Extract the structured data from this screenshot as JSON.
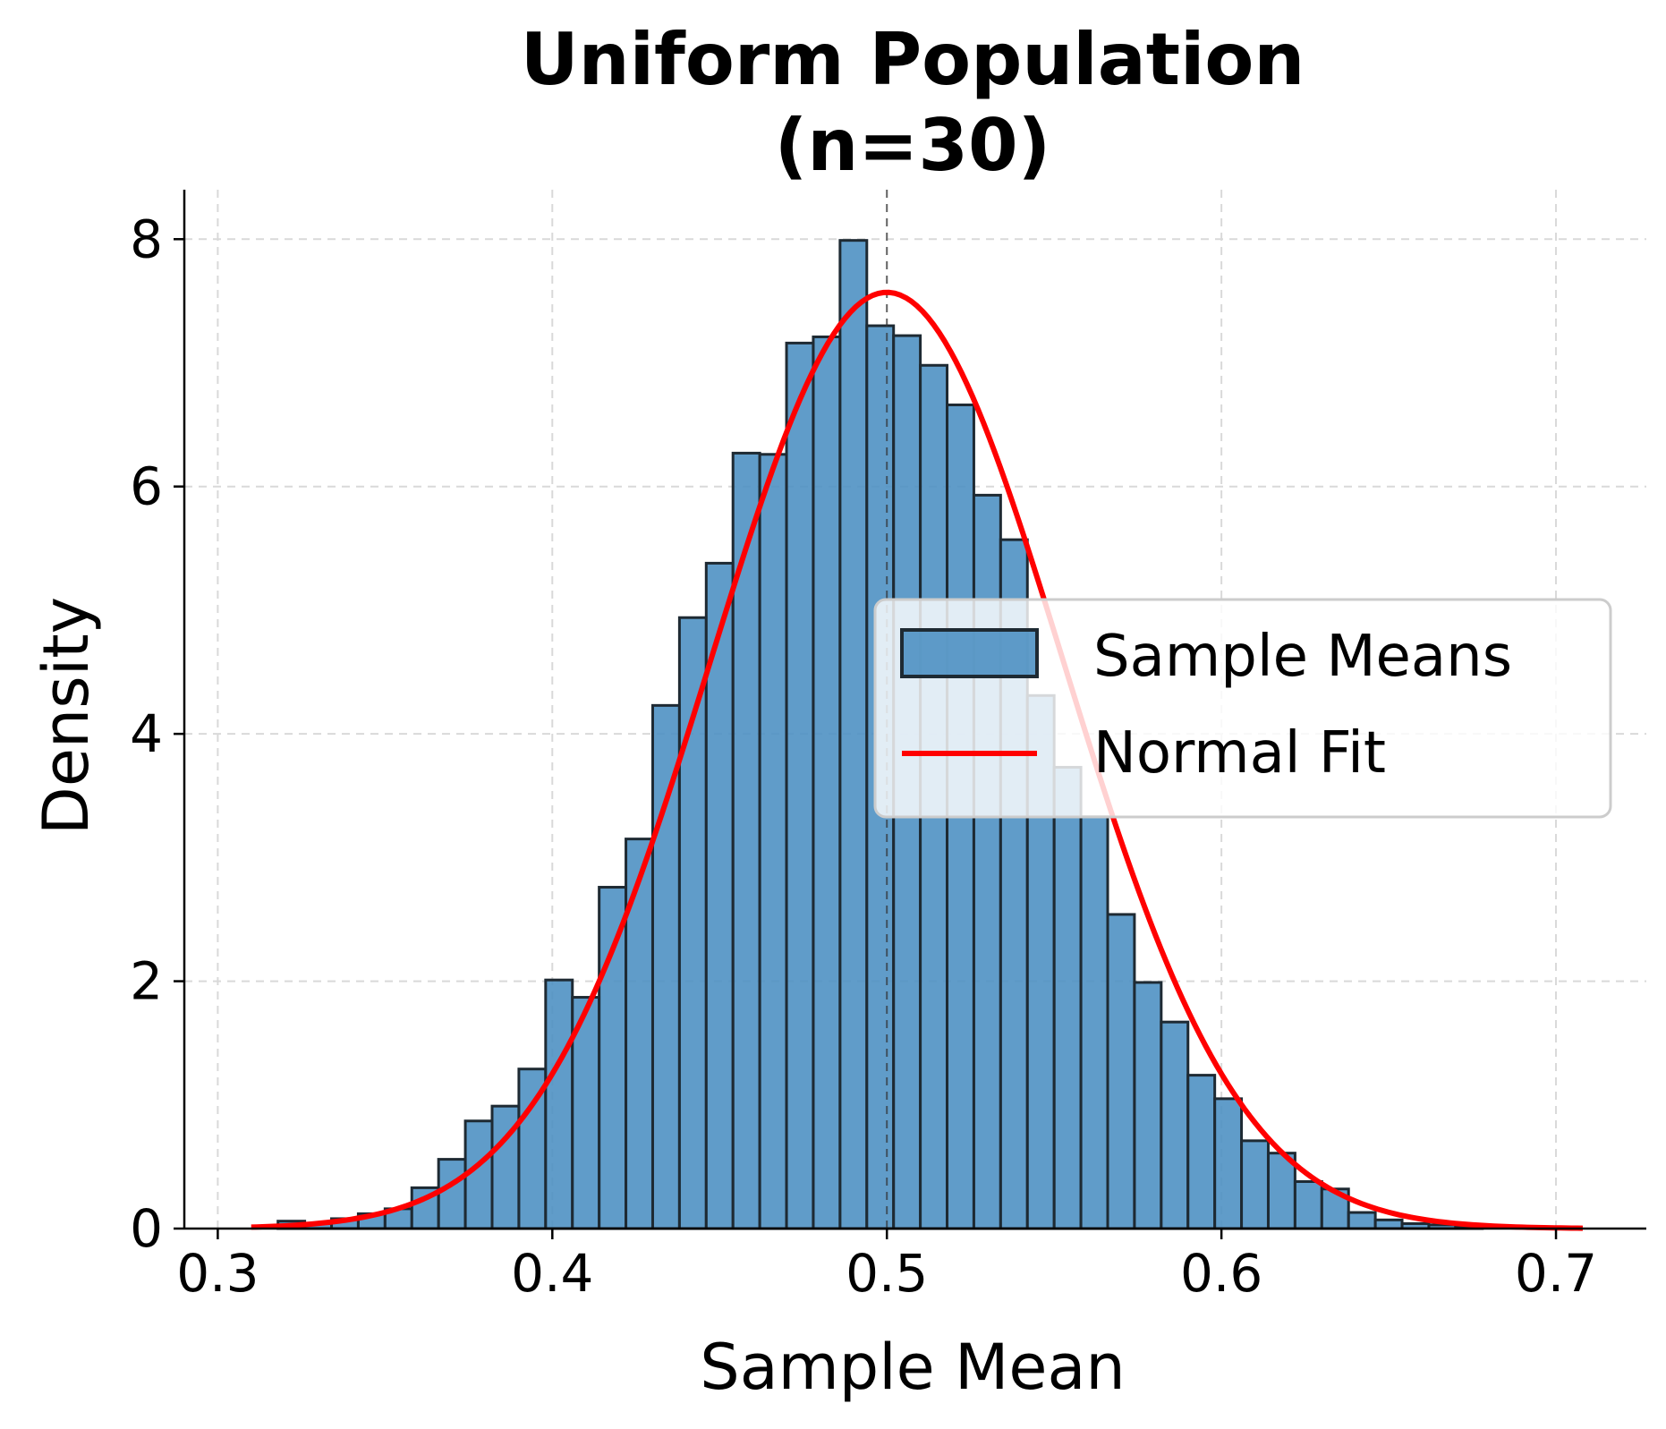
{
  "chart_data": {
    "type": "bar",
    "title_lines": [
      "Uniform Population",
      "(n=30)"
    ],
    "xlabel": "Sample Mean",
    "ylabel": "Density",
    "xlim": [
      0.29,
      0.727
    ],
    "ylim": [
      0,
      8.4
    ],
    "x_ticks": [
      0.3,
      0.4,
      0.5,
      0.6,
      0.7
    ],
    "x_tick_labels": [
      "0.3",
      "0.4",
      "0.5",
      "0.6",
      "0.7"
    ],
    "y_ticks": [
      0,
      2,
      4,
      6,
      8
    ],
    "y_tick_labels": [
      "0",
      "2",
      "4",
      "6",
      "8"
    ],
    "grid": true,
    "vline_x": 0.5,
    "histogram": {
      "name": "Sample Means",
      "color": "#4a8ec2",
      "bin_start": 0.31,
      "bin_width": 0.008,
      "densities": [
        0,
        0.06,
        0.04,
        0.08,
        0.12,
        0.16,
        0.33,
        0.56,
        0.87,
        0.99,
        1.29,
        2.01,
        1.87,
        2.76,
        3.15,
        4.23,
        4.94,
        5.38,
        6.27,
        6.26,
        7.16,
        7.21,
        7.99,
        7.3,
        7.22,
        6.98,
        6.66,
        5.93,
        5.57,
        4.31,
        3.73,
        3.33,
        2.54,
        1.99,
        1.67,
        1.24,
        1.05,
        0.71,
        0.61,
        0.38,
        0.32,
        0.13,
        0.07,
        0.04,
        0.03,
        0.02
      ]
    },
    "normal_fit": {
      "name": "Normal Fit",
      "color": "#ff0000",
      "mean": 0.5,
      "std": 0.0527,
      "x_range": [
        0.31,
        0.708
      ]
    },
    "legend": {
      "position": "center-right",
      "entries": [
        "Sample Means",
        "Normal Fit"
      ]
    }
  }
}
